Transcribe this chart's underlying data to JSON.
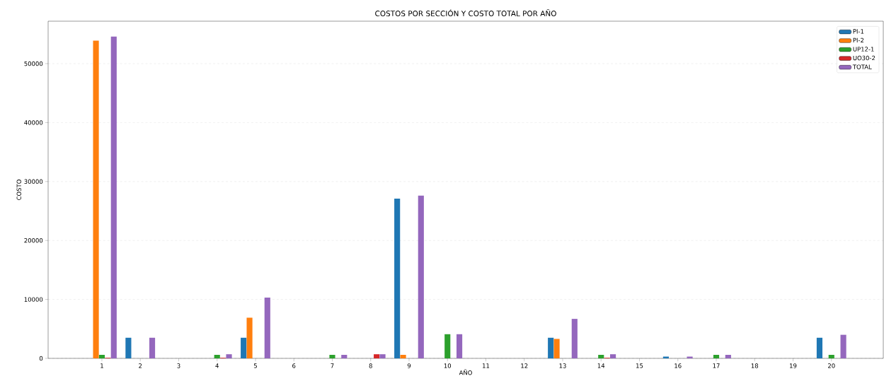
{
  "chart_data": {
    "type": "bar",
    "title": "COSTOS POR SECCIÓN Y COSTO TOTAL POR AÑO",
    "xlabel": "AÑO",
    "ylabel": "COSTO",
    "categories": [
      "1",
      "2",
      "3",
      "4",
      "5",
      "6",
      "7",
      "8",
      "9",
      "10",
      "11",
      "12",
      "13",
      "14",
      "15",
      "16",
      "17",
      "18",
      "19",
      "20"
    ],
    "series": [
      {
        "name": "PI-1",
        "color": "#1f77b4",
        "values": [
          0,
          3500,
          0,
          0,
          3500,
          0,
          0,
          0,
          27100,
          0,
          0,
          0,
          3500,
          0,
          0,
          300,
          0,
          0,
          0,
          3500
        ]
      },
      {
        "name": "PI-2",
        "color": "#ff7f0e",
        "values": [
          53900,
          0,
          0,
          0,
          6900,
          0,
          0,
          0,
          600,
          0,
          0,
          0,
          3300,
          0,
          0,
          0,
          0,
          0,
          0,
          0
        ]
      },
      {
        "name": "UP12-1",
        "color": "#2ca02c",
        "values": [
          600,
          0,
          0,
          600,
          0,
          0,
          600,
          0,
          0,
          4100,
          0,
          0,
          0,
          600,
          0,
          0,
          600,
          0,
          0,
          600
        ]
      },
      {
        "name": "UO30-2",
        "color": "#d62728",
        "values": [
          100,
          0,
          0,
          100,
          0,
          0,
          0,
          700,
          0,
          0,
          0,
          0,
          0,
          100,
          0,
          0,
          0,
          0,
          0,
          0
        ]
      },
      {
        "name": "TOTAL",
        "color": "#9467bd",
        "values": [
          54600,
          3500,
          0,
          700,
          10300,
          0,
          600,
          700,
          27600,
          4100,
          0,
          0,
          6700,
          700,
          0,
          300,
          600,
          0,
          0,
          4000
        ]
      }
    ],
    "ylim": [
      0,
      57200
    ],
    "yticks": [
      0,
      10000,
      20000,
      30000,
      40000,
      50000
    ],
    "grid": "y",
    "legend": "top right"
  }
}
